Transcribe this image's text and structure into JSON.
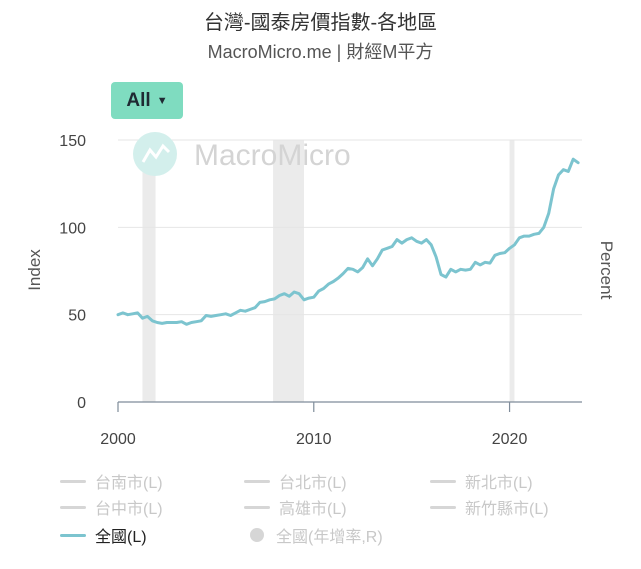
{
  "header": {
    "title": "台灣-國泰房價指數-各地區",
    "subtitle": "MacroMicro.me | 財經M平方"
  },
  "range_selector": {
    "label": "All",
    "caret": "▼"
  },
  "watermark": {
    "text": "MacroMicro"
  },
  "colors": {
    "series": "#7cc4cf",
    "recession_band": "#ebebeb",
    "legend_inactive": "#d6d6d6",
    "button": "#7fdcc0"
  },
  "legend": [
    {
      "label": "台南市(L)",
      "active": false
    },
    {
      "label": "台北市(L)",
      "active": false
    },
    {
      "label": "新北市(L)",
      "active": false
    },
    {
      "label": "台中市(L)",
      "active": false
    },
    {
      "label": "高雄市(L)",
      "active": false
    },
    {
      "label": "新竹縣市(L)",
      "active": false
    },
    {
      "label": "全國(L)",
      "active": true
    },
    {
      "label": "全國(年增率,R)",
      "active": false
    }
  ],
  "chart_data": {
    "type": "line",
    "title": "台灣-國泰房價指數-各地區",
    "ylabel": "Index",
    "y2label": "Percent",
    "ylim": [
      0,
      150
    ],
    "yticks": [
      0,
      50,
      100,
      150
    ],
    "xlim": [
      2000,
      2023.7
    ],
    "xticks": [
      2000,
      2010,
      2020
    ],
    "grid": "horizontal",
    "recession_bands": [
      [
        2001.25,
        2001.92
      ],
      [
        2007.92,
        2009.5
      ],
      [
        2020.0,
        2020.25
      ]
    ],
    "series": [
      {
        "name": "全國(L)",
        "x": [
          2000,
          2000.25,
          2000.5,
          2000.75,
          2001,
          2001.25,
          2001.5,
          2001.75,
          2002,
          2002.25,
          2002.5,
          2002.75,
          2003,
          2003.25,
          2003.5,
          2003.75,
          2004,
          2004.25,
          2004.5,
          2004.75,
          2005,
          2005.25,
          2005.5,
          2005.75,
          2006,
          2006.25,
          2006.5,
          2006.75,
          2007,
          2007.25,
          2007.5,
          2007.75,
          2008,
          2008.25,
          2008.5,
          2008.75,
          2009,
          2009.25,
          2009.5,
          2009.75,
          2010,
          2010.25,
          2010.5,
          2010.75,
          2011,
          2011.25,
          2011.5,
          2011.75,
          2012,
          2012.25,
          2012.5,
          2012.75,
          2013,
          2013.25,
          2013.5,
          2013.75,
          2014,
          2014.25,
          2014.5,
          2014.75,
          2015,
          2015.25,
          2015.5,
          2015.75,
          2016,
          2016.25,
          2016.5,
          2016.75,
          2017,
          2017.25,
          2017.5,
          2017.75,
          2018,
          2018.25,
          2018.5,
          2018.75,
          2019,
          2019.25,
          2019.5,
          2019.75,
          2020,
          2020.25,
          2020.5,
          2020.75,
          2021,
          2021.25,
          2021.5,
          2021.75,
          2022,
          2022.25,
          2022.5,
          2022.75,
          2023,
          2023.25,
          2023.5
        ],
        "values": [
          50,
          51,
          50,
          50.5,
          51,
          48,
          49,
          46.5,
          45.5,
          45,
          45.5,
          45.5,
          45.5,
          46,
          44.5,
          45.5,
          46,
          46.5,
          49.5,
          49,
          49.5,
          50,
          50.5,
          49.5,
          51,
          52.5,
          52,
          53,
          54,
          57,
          57.5,
          58.5,
          59,
          61,
          62,
          60.5,
          63,
          62,
          58.5,
          59.5,
          60,
          63.5,
          65,
          67.5,
          69,
          71,
          73.5,
          76.5,
          76,
          74.5,
          77,
          82,
          78,
          82,
          87,
          88,
          89,
          93,
          91,
          93,
          94,
          92,
          91,
          93,
          90,
          83,
          73,
          71.5,
          76,
          74.5,
          76,
          75.5,
          76,
          80,
          78.5,
          80,
          79.5,
          84,
          85,
          85.5,
          88,
          90,
          94,
          95,
          95,
          96,
          96.5,
          100,
          108,
          122,
          130,
          133,
          132,
          139,
          137
        ]
      }
    ]
  }
}
